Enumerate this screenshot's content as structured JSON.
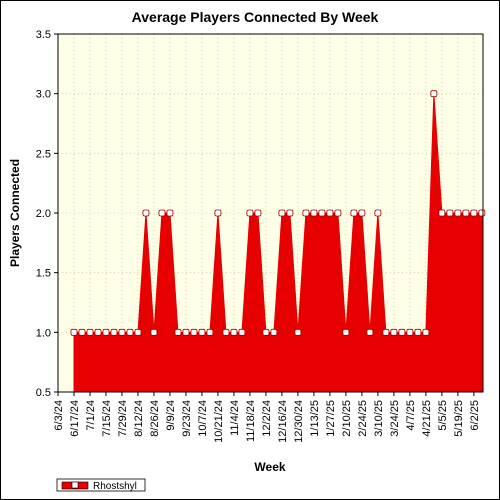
{
  "chart_data": {
    "type": "area",
    "title": "Average Players Connected By Week",
    "xlabel": "Week",
    "ylabel": "Players Connected",
    "ylim": [
      0.5,
      3.5
    ],
    "yticks": [
      "0.5",
      "1.0",
      "1.5",
      "2.0",
      "2.5",
      "3.0",
      "3.5"
    ],
    "xtick_labels": [
      "6/3/24",
      "6/17/24",
      "7/1/24",
      "7/15/24",
      "7/29/24",
      "8/12/24",
      "8/26/24",
      "9/9/24",
      "9/23/24",
      "10/7/24",
      "10/21/24",
      "11/4/24",
      "11/18/24",
      "12/2/24",
      "12/16/24",
      "12/30/24",
      "1/13/25",
      "1/27/25",
      "2/10/25",
      "2/24/25",
      "3/10/25",
      "3/24/25",
      "4/7/25",
      "4/21/25",
      "5/5/25",
      "5/19/25",
      "6/2/25"
    ],
    "grid": true,
    "legend_position": "bottom-left",
    "colors": {
      "fill": "#e60000",
      "plot_bg": "#ffffe8",
      "grid": "#c8c8a0"
    },
    "series": [
      {
        "name": "Rhostshyl",
        "x": [
          "6/17/24",
          "6/24/24",
          "7/1/24",
          "7/8/24",
          "7/15/24",
          "7/22/24",
          "7/29/24",
          "8/5/24",
          "8/12/24",
          "8/19/24",
          "8/26/24",
          "9/2/24",
          "9/9/24",
          "9/16/24",
          "9/23/24",
          "9/30/24",
          "10/7/24",
          "10/14/24",
          "10/21/24",
          "10/28/24",
          "11/4/24",
          "11/11/24",
          "11/18/24",
          "11/25/24",
          "12/2/24",
          "12/9/24",
          "12/16/24",
          "12/23/24",
          "12/30/24",
          "1/6/25",
          "1/13/25",
          "1/20/25",
          "1/27/25",
          "2/3/25",
          "2/10/25",
          "2/17/25",
          "2/24/25",
          "3/3/25",
          "3/10/25",
          "3/17/25",
          "3/24/25",
          "3/31/25",
          "4/7/25",
          "4/14/25",
          "4/21/25",
          "4/28/25",
          "5/5/25",
          "5/12/25",
          "5/19/25",
          "5/26/25",
          "6/2/25",
          "6/9/25"
        ],
        "values": [
          1,
          1,
          1,
          1,
          1,
          1,
          1,
          1,
          1,
          2,
          1,
          2,
          2,
          1,
          1,
          1,
          1,
          1,
          2,
          1,
          1,
          1,
          2,
          2,
          1,
          1,
          2,
          2,
          1,
          2,
          2,
          2,
          2,
          2,
          1,
          2,
          2,
          1,
          2,
          1,
          1,
          1,
          1,
          1,
          1,
          3,
          2,
          2,
          2,
          2,
          2,
          2
        ]
      }
    ]
  }
}
